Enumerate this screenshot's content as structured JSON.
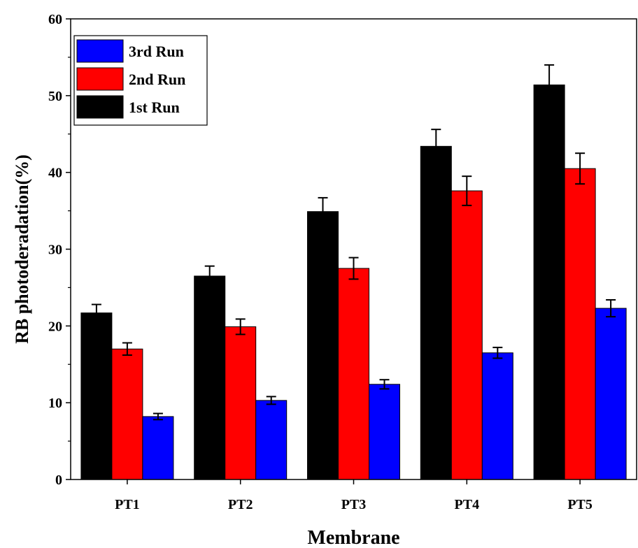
{
  "chart_data": {
    "type": "bar",
    "title": "",
    "xlabel": "Membrane",
    "ylabel": "RB photoderadation(%)",
    "categories": [
      "PT1",
      "PT2",
      "PT3",
      "PT4",
      "PT5"
    ],
    "ylim": [
      0,
      60
    ],
    "yticks": [
      0,
      10,
      20,
      30,
      40,
      50,
      60
    ],
    "grid": false,
    "legend_position": "top-left",
    "series": [
      {
        "name": "1st Run",
        "color": "#000000",
        "values": [
          21.7,
          26.5,
          34.9,
          43.4,
          51.4
        ],
        "errors": [
          1.1,
          1.3,
          1.8,
          2.2,
          2.6
        ]
      },
      {
        "name": "2nd Run",
        "color": "#ff0000",
        "values": [
          17.0,
          19.9,
          27.5,
          37.6,
          40.5
        ],
        "errors": [
          0.8,
          1.0,
          1.4,
          1.9,
          2.0
        ]
      },
      {
        "name": "3rd Run",
        "color": "#0000ff",
        "values": [
          8.2,
          10.3,
          12.4,
          16.5,
          22.3
        ],
        "errors": [
          0.4,
          0.5,
          0.6,
          0.7,
          1.1
        ]
      }
    ],
    "legend_order": [
      "3rd Run",
      "2nd Run",
      "1st Run"
    ]
  }
}
